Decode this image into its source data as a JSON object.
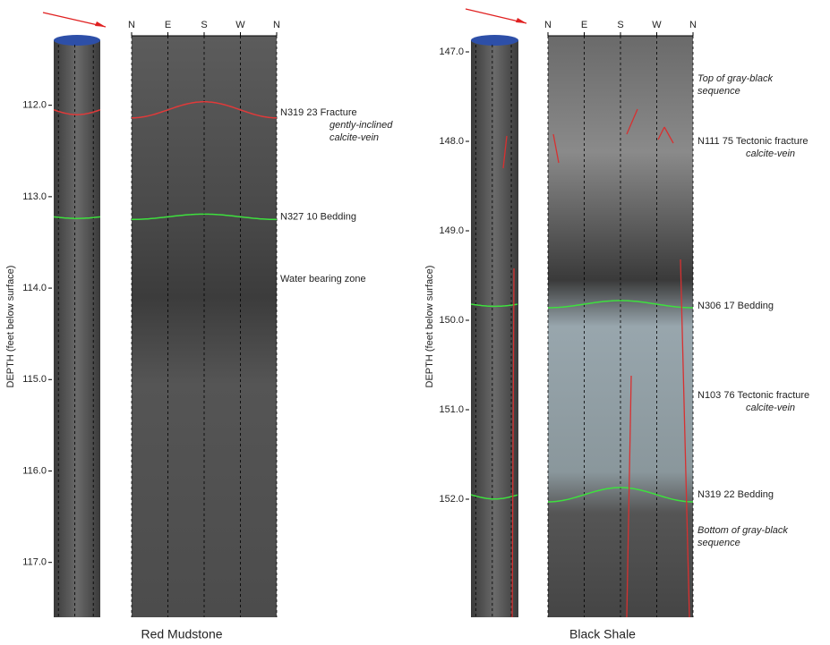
{
  "panels": [
    {
      "title": "Red Mudstone",
      "y_axis_label": "DEPTH (feet below surface)",
      "directions": [
        "N",
        "E",
        "S",
        "W",
        "N"
      ],
      "ylim": [
        111.24,
        117.6
      ],
      "yticks": [
        {
          "value": 112,
          "label": "112.0"
        },
        {
          "value": 113,
          "label": "113.0"
        },
        {
          "value": 114,
          "label": "114.0"
        },
        {
          "value": 115,
          "label": "115.0"
        },
        {
          "value": 116,
          "label": "116.0"
        },
        {
          "value": 117,
          "label": "117.0"
        }
      ],
      "traces": [
        {
          "depth": 112.05,
          "color": "#e03a3a"
        },
        {
          "depth": 113.22,
          "color": "#3ee03e"
        }
      ],
      "annotations": [
        {
          "depth": 112.08,
          "text": "N319 23 Fracture",
          "note": [
            "gently-inclined",
            "calcite-vein"
          ]
        },
        {
          "depth": 113.22,
          "text": "N327 10 Bedding"
        },
        {
          "depth": 113.9,
          "text": "Water bearing zone"
        }
      ]
    },
    {
      "title": "Black Shale",
      "y_axis_label": "DEPTH (feet below surface)",
      "directions": [
        "N",
        "E",
        "S",
        "W",
        "N"
      ],
      "ylim": [
        146.82,
        153.32
      ],
      "yticks": [
        {
          "value": 147,
          "label": "147.0"
        },
        {
          "value": 148,
          "label": "148.0"
        },
        {
          "value": 149,
          "label": "149.0"
        },
        {
          "value": 150,
          "label": "150.0"
        },
        {
          "value": 151,
          "label": "151.0"
        },
        {
          "value": 152,
          "label": "152.0"
        }
      ],
      "traces": [
        {
          "depth": 149.82,
          "color": "#3ee03e"
        },
        {
          "depth": 151.95,
          "color": "#3ee03e"
        }
      ],
      "annotations": [
        {
          "depth": 147.3,
          "note": [
            "Top of gray-black",
            "sequence"
          ]
        },
        {
          "depth": 148.0,
          "text": "N111 75 Tectonic fracture",
          "note": [
            "calcite-vein"
          ]
        },
        {
          "depth": 149.84,
          "text": "N306 17 Bedding"
        },
        {
          "depth": 150.84,
          "text": "N103 76 Tectonic fracture",
          "note": [
            "calcite-vein"
          ]
        },
        {
          "depth": 151.95,
          "text": "N319 22 Bedding"
        },
        {
          "depth": 152.35,
          "note": [
            "Bottom of gray-black",
            "sequence"
          ]
        }
      ]
    }
  ]
}
